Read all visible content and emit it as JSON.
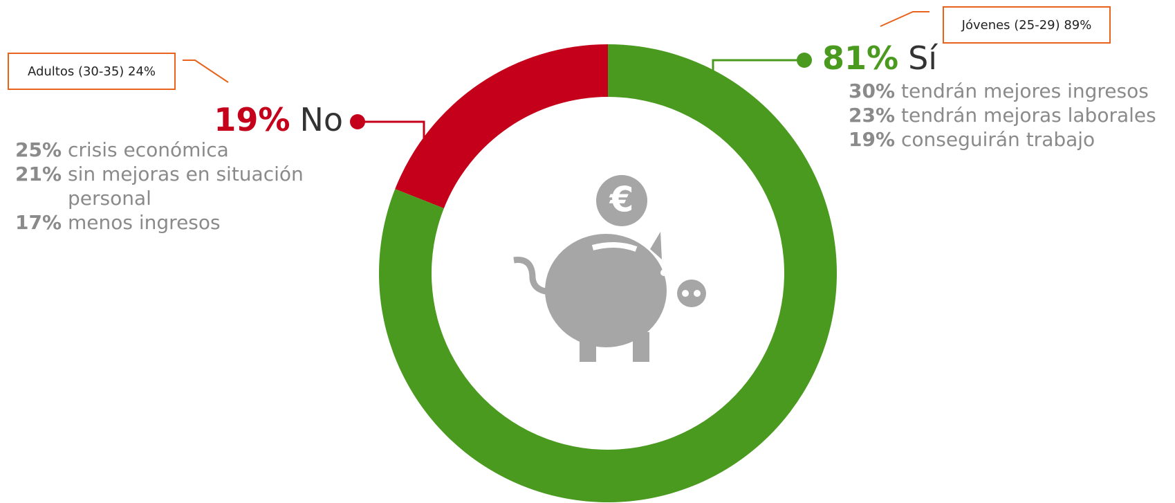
{
  "chart_data": {
    "type": "pie",
    "donut": true,
    "categories": [
      "Sí",
      "No"
    ],
    "values": [
      81,
      19
    ],
    "value_labels": [
      "81%",
      "19%"
    ],
    "colors": [
      "#4a9a1f",
      "#c5001a"
    ],
    "details": [
      [
        {
          "value": 30,
          "label": "30%",
          "text": "tendrán mejores ingresos"
        },
        {
          "value": 23,
          "label": "23%",
          "text": "tendrán mejoras laborales"
        },
        {
          "value": 19,
          "label": "19%",
          "text": "conseguirán trabajo"
        }
      ],
      [
        {
          "value": 25,
          "label": "25%",
          "text": "crisis económica"
        },
        {
          "value": 21,
          "label": "21%",
          "text": "sin mejoras en situación personal"
        },
        {
          "value": 17,
          "label": "17%",
          "text": "menos ingresos"
        }
      ]
    ],
    "annotations": [
      "Jóvenes (25-29) 89%",
      "Adultos (30-35) 24%"
    ]
  }
}
